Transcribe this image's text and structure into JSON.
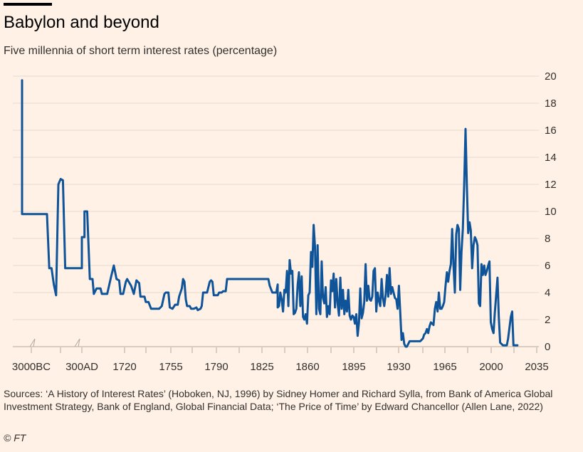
{
  "header": {
    "title": "Babylon and beyond",
    "subtitle": "Five millennia of short term interest rates (percentage)"
  },
  "footer": {
    "source": "Sources: ‘A History of Interest Rates’ (Hoboken, NJ, 1996) by Sidney Homer and Richard Sylla, from Bank of America Global Investment Strategy, Bank of England, Global Financial Data; ‘The Price of Time’ by Edward Chancellor (Allen Lane, 2022)",
    "copyright": "© FT"
  },
  "colors": {
    "background": "#fff1e5",
    "line": "#0f5499",
    "grid": "#e6d9ce",
    "axis": "#b3a9a0",
    "text": "#33302e"
  },
  "chart_data": {
    "type": "line",
    "title": "Babylon and beyond",
    "subtitle": "Five millennia of short term interest rates (percentage)",
    "ylim": [
      0,
      20
    ],
    "y_ticks": [
      0,
      2,
      4,
      6,
      8,
      10,
      12,
      14,
      16,
      18,
      20
    ],
    "y_axis_position": "right",
    "grid": true,
    "x_axis_breaks": 2,
    "x_tick_labels": [
      "3000BC",
      "300AD",
      "1720",
      "1755",
      "1790",
      "1825",
      "1860",
      "1895",
      "1930",
      "1965",
      "2000",
      "2035"
    ],
    "x_scale_segments": [
      {
        "start_label": "3000BC",
        "index_start": 0,
        "index_end": 12
      },
      {
        "start_label": "300AD",
        "index_start": 13,
        "index_end": 21
      },
      {
        "start_label": "1720",
        "year_start": 1700,
        "year_end": 2040
      }
    ],
    "series": [
      {
        "name": "",
        "color": "#0f5499",
        "points": [
          [
            0,
            19.7
          ],
          [
            0,
            9.8
          ],
          [
            4,
            9.8
          ],
          [
            8,
            9.8
          ],
          [
            12,
            9.8
          ],
          [
            13,
            9.8
          ],
          [
            14,
            5.8
          ],
          [
            15,
            5.8
          ],
          [
            16,
            4.6
          ],
          [
            17,
            3.8
          ],
          [
            18,
            12.0
          ],
          [
            19,
            12.4
          ],
          [
            20,
            12.3
          ],
          [
            21,
            5.8
          ],
          [
            1700,
            5.8
          ],
          [
            1700,
            8.1
          ],
          [
            1702,
            8.1
          ],
          [
            1702,
            10.0
          ],
          [
            1704,
            10.0
          ],
          [
            1706,
            5.0
          ],
          [
            1708,
            5.0
          ],
          [
            1709,
            3.9
          ],
          [
            1711,
            4.3
          ],
          [
            1714,
            4.3
          ],
          [
            1715,
            3.9
          ],
          [
            1719,
            3.9
          ],
          [
            1722,
            5.2
          ],
          [
            1724,
            6.0
          ],
          [
            1726,
            5.0
          ],
          [
            1728,
            4.9
          ],
          [
            1729,
            3.9
          ],
          [
            1731,
            3.9
          ],
          [
            1733,
            4.8
          ],
          [
            1734,
            5.0
          ],
          [
            1737,
            4.5
          ],
          [
            1739,
            3.9
          ],
          [
            1741,
            4.9
          ],
          [
            1743,
            4.7
          ],
          [
            1744,
            3.7
          ],
          [
            1747,
            3.7
          ],
          [
            1748,
            3.3
          ],
          [
            1750,
            3.3
          ],
          [
            1752,
            2.8
          ],
          [
            1758,
            2.8
          ],
          [
            1760,
            3.0
          ],
          [
            1762,
            3.9
          ],
          [
            1763,
            4.0
          ],
          [
            1765,
            4.0
          ],
          [
            1766,
            2.9
          ],
          [
            1768,
            2.8
          ],
          [
            1770,
            3.1
          ],
          [
            1772,
            3.1
          ],
          [
            1773,
            3.7
          ],
          [
            1775,
            4.3
          ],
          [
            1776,
            5.0
          ],
          [
            1777,
            4.8
          ],
          [
            1778,
            3.5
          ],
          [
            1779,
            3.0
          ],
          [
            1781,
            3.0
          ],
          [
            1782,
            2.8
          ],
          [
            1784,
            2.8
          ],
          [
            1786,
            2.9
          ],
          [
            1787,
            2.7
          ],
          [
            1789,
            2.8
          ],
          [
            1790,
            3.0
          ],
          [
            1791,
            4.0
          ],
          [
            1794,
            4.0
          ],
          [
            1796,
            4.8
          ],
          [
            1797,
            4.9
          ],
          [
            1798,
            4.8
          ],
          [
            1799,
            3.8
          ],
          [
            1802,
            3.8
          ],
          [
            1803,
            4.0
          ],
          [
            1805,
            4.0
          ],
          [
            1806,
            4.1
          ],
          [
            1808,
            4.1
          ],
          [
            1809,
            5.0
          ],
          [
            1840,
            5.0
          ],
          [
            1841,
            4.5
          ],
          [
            1843,
            4.0
          ],
          [
            1846,
            4.0
          ],
          [
            1847,
            4.6
          ],
          [
            1847,
            2.9
          ],
          [
            1848,
            3.0
          ],
          [
            1849,
            4.0
          ],
          [
            1850,
            3.5
          ],
          [
            1851,
            2.6
          ],
          [
            1852,
            4.2
          ],
          [
            1853,
            4.0
          ],
          [
            1854,
            5.6
          ],
          [
            1855,
            3.0
          ],
          [
            1856,
            6.4
          ],
          [
            1857,
            5.4
          ],
          [
            1858,
            5.6
          ],
          [
            1859,
            2.4
          ],
          [
            1860,
            2.5
          ],
          [
            1861,
            2.8
          ],
          [
            1862,
            4.6
          ],
          [
            1863,
            5.5
          ],
          [
            1864,
            3.0
          ],
          [
            1865,
            5.2
          ],
          [
            1866,
            2.2
          ],
          [
            1867,
            2.0
          ],
          [
            1868,
            2.4
          ],
          [
            1869,
            1.7
          ],
          [
            1870,
            3.8
          ],
          [
            1871,
            4.0
          ],
          [
            1872,
            7.0
          ],
          [
            1873,
            5.9
          ],
          [
            1874,
            9.0
          ],
          [
            1875,
            7.4
          ],
          [
            1876,
            2.4
          ],
          [
            1877,
            7.5
          ],
          [
            1878,
            2.8
          ],
          [
            1879,
            2.4
          ],
          [
            1880,
            6.3
          ],
          [
            1881,
            3.6
          ],
          [
            1882,
            3.2
          ],
          [
            1883,
            4.4
          ],
          [
            1884,
            2.2
          ],
          [
            1885,
            3.0
          ],
          [
            1886,
            2.4
          ],
          [
            1887,
            4.9
          ],
          [
            1888,
            4.1
          ],
          [
            1889,
            5.4
          ],
          [
            1890,
            2.9
          ],
          [
            1891,
            5.0
          ],
          [
            1892,
            3.2
          ],
          [
            1893,
            2.3
          ],
          [
            1894,
            5.1
          ],
          [
            1895,
            2.8
          ],
          [
            1896,
            4.2
          ],
          [
            1897,
            2.4
          ],
          [
            1898,
            3.4
          ],
          [
            1899,
            2.6
          ],
          [
            1900,
            4.2
          ],
          [
            1901,
            2.3
          ],
          [
            1902,
            2.0
          ],
          [
            1903,
            2.3
          ],
          [
            1904,
            2.2
          ],
          [
            1905,
            1.7
          ],
          [
            1906,
            2.4
          ],
          [
            1907,
            0.8
          ],
          [
            1908,
            1.8
          ],
          [
            1909,
            4.3
          ],
          [
            1910,
            2.1
          ],
          [
            1911,
            2.5
          ],
          [
            1912,
            3.3
          ],
          [
            1913,
            6.1
          ],
          [
            1914,
            3.4
          ],
          [
            1915,
            4.5
          ],
          [
            1916,
            3.5
          ],
          [
            1917,
            3.4
          ],
          [
            1918,
            3.7
          ],
          [
            1919,
            5.6
          ],
          [
            1920,
            5.8
          ],
          [
            1921,
            2.6
          ],
          [
            1922,
            4.0
          ],
          [
            1923,
            3.4
          ],
          [
            1924,
            3.0
          ],
          [
            1925,
            5.0
          ],
          [
            1926,
            3.6
          ],
          [
            1927,
            3.0
          ],
          [
            1928,
            3.8
          ],
          [
            1929,
            5.3
          ],
          [
            1930,
            3.7
          ],
          [
            1931,
            5.8
          ],
          [
            1932,
            3.9
          ],
          [
            1933,
            4.4
          ],
          [
            1934,
            4.0
          ],
          [
            1935,
            3.6
          ],
          [
            1936,
            3.5
          ],
          [
            1937,
            2.8
          ],
          [
            1938,
            4.5
          ],
          [
            1939,
            2.5
          ],
          [
            1940,
            0.5
          ],
          [
            1941,
            1.0
          ],
          [
            1942,
            0.2
          ],
          [
            1943,
            0.0
          ],
          [
            1944,
            0.0
          ],
          [
            1945,
            0.2
          ],
          [
            1946,
            0.4
          ],
          [
            1948,
            0.4
          ],
          [
            1950,
            0.4
          ],
          [
            1952,
            0.4
          ],
          [
            1954,
            0.4
          ],
          [
            1956,
            0.6
          ],
          [
            1957,
            0.9
          ],
          [
            1958,
            1.0
          ],
          [
            1959,
            1.3
          ],
          [
            1960,
            1.0
          ],
          [
            1961,
            1.5
          ],
          [
            1962,
            1.8
          ],
          [
            1963,
            1.7
          ],
          [
            1964,
            1.6
          ],
          [
            1965,
            2.8
          ],
          [
            1966,
            3.3
          ],
          [
            1967,
            2.6
          ],
          [
            1968,
            4.0
          ],
          [
            1969,
            2.8
          ],
          [
            1970,
            2.8
          ],
          [
            1971,
            3.0
          ],
          [
            1972,
            3.3
          ],
          [
            1973,
            4.5
          ],
          [
            1974,
            5.5
          ],
          [
            1975,
            4.8
          ],
          [
            1976,
            5.6
          ],
          [
            1977,
            6.1
          ],
          [
            1978,
            8.7
          ],
          [
            1979,
            6.0
          ],
          [
            1980,
            4.0
          ],
          [
            1981,
            8.3
          ],
          [
            1982,
            9.0
          ],
          [
            1983,
            8.7
          ],
          [
            1984,
            4.2
          ],
          [
            1985,
            7.0
          ],
          [
            1986,
            8.7
          ],
          [
            1987,
            12.0
          ],
          [
            1988,
            16.1
          ],
          [
            1989,
            12.0
          ],
          [
            1990,
            8.4
          ],
          [
            1991,
            9.2
          ],
          [
            1992,
            8.6
          ],
          [
            1993,
            5.8
          ],
          [
            1994,
            7.5
          ],
          [
            1995,
            8.1
          ],
          [
            1996,
            7.9
          ],
          [
            1997,
            7.5
          ],
          [
            1998,
            3.2
          ],
          [
            1999,
            3.0
          ],
          [
            2000,
            6.1
          ],
          [
            2001,
            5.3
          ],
          [
            2002,
            6.0
          ],
          [
            2003,
            5.3
          ],
          [
            2004,
            5.6
          ],
          [
            2005,
            6.0
          ],
          [
            2006,
            6.3
          ],
          [
            2007,
            1.8
          ],
          [
            2008,
            1.3
          ],
          [
            2009,
            1.0
          ],
          [
            2010,
            2.5
          ],
          [
            2011,
            3.8
          ],
          [
            2012,
            5.1
          ],
          [
            2013,
            2.2
          ],
          [
            2014,
            0.3
          ],
          [
            2015,
            0.2
          ],
          [
            2016,
            0.1
          ],
          [
            2018,
            0.1
          ],
          [
            2019,
            0.1
          ],
          [
            2020,
            0.6
          ],
          [
            2021,
            1.4
          ],
          [
            2022,
            2.2
          ],
          [
            2023,
            2.6
          ],
          [
            2024,
            0.1
          ],
          [
            2027,
            0.1
          ]
        ]
      }
    ]
  }
}
